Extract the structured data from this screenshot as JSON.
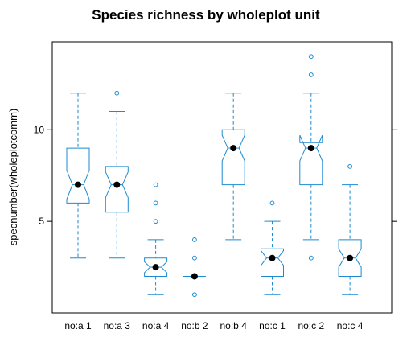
{
  "chart_data": {
    "type": "box",
    "title": "Species richness by wholeplot unit",
    "xlabel": "",
    "ylabel": "specnumber(wholeplotcomm)",
    "ylim": [
      0,
      14.8
    ],
    "yticks": [
      5,
      10
    ],
    "notched": true,
    "colors": {
      "box": "#1f8ad0",
      "median": "#000000",
      "frame": "#000000"
    },
    "categories": [
      "no:a 1",
      "no:a 3",
      "no:a 4",
      "no:b 2",
      "no:b 4",
      "no:c 1",
      "no:c 2",
      "no:c 4"
    ],
    "boxes": [
      {
        "min": 3,
        "q1": 6,
        "median": 7,
        "q3": 9,
        "max": 12,
        "notch": [
          6.2,
          7.8
        ],
        "outliers": []
      },
      {
        "min": 3,
        "q1": 5.5,
        "median": 7,
        "q3": 8,
        "max": 11,
        "notch": [
          6.3,
          7.7
        ],
        "outliers": [
          12
        ]
      },
      {
        "min": 1,
        "q1": 2,
        "median": 2.5,
        "q3": 3,
        "max": 4,
        "notch": [
          2.2,
          2.8
        ],
        "outliers": [
          5,
          6,
          7
        ]
      },
      {
        "min": 2,
        "q1": 2,
        "median": 2,
        "q3": 2,
        "max": 2,
        "notch": [
          2,
          2
        ],
        "outliers": [
          1,
          3,
          4
        ]
      },
      {
        "min": 4,
        "q1": 7,
        "median": 9,
        "q3": 10,
        "max": 12,
        "notch": [
          8.3,
          9.7
        ],
        "outliers": []
      },
      {
        "min": 1,
        "q1": 2,
        "median": 3,
        "q3": 3.5,
        "max": 5,
        "notch": [
          2.6,
          3.4
        ],
        "outliers": [
          6
        ]
      },
      {
        "min": 4,
        "q1": 7,
        "median": 9,
        "q3": 9.3,
        "max": 12,
        "notch": [
          8.3,
          9.7
        ],
        "outliers": [
          3,
          13,
          14
        ]
      },
      {
        "min": 1,
        "q1": 2,
        "median": 3,
        "q3": 4,
        "max": 7,
        "notch": [
          2.5,
          3.5
        ],
        "outliers": [
          8
        ]
      }
    ]
  }
}
